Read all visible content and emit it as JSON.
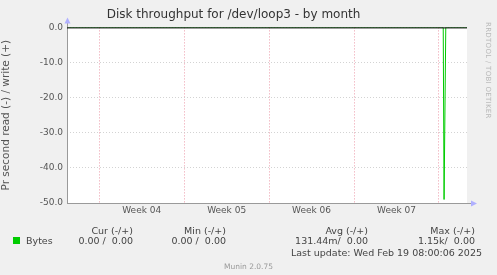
{
  "chart_data": {
    "type": "line",
    "title": "Disk throughput for /dev/loop3 - by month",
    "y_label": "Pr second read (-) / write (+)",
    "x": [
      3.62,
      8.05,
      8.06,
      8.07,
      8.08,
      8.33
    ],
    "series": [
      {
        "name": "Bytes",
        "color": "#00cc00",
        "values": [
          0,
          0,
          -49,
          -49,
          0,
          0
        ]
      }
    ],
    "xlim": [
      3.62,
      8.33
    ],
    "xticks": [
      {
        "value": 4.5,
        "label": "Week 04"
      },
      {
        "value": 5.5,
        "label": "Week 05"
      },
      {
        "value": 6.5,
        "label": "Week 06"
      },
      {
        "value": 7.5,
        "label": "Week 07"
      }
    ],
    "ylim": [
      -50,
      0
    ],
    "yticks": [
      {
        "value": 0,
        "label": "0.0"
      },
      {
        "value": -10,
        "label": "-10.0"
      },
      {
        "value": -20,
        "label": "-20.0"
      },
      {
        "value": -30,
        "label": "-30.0"
      },
      {
        "value": -40,
        "label": "-40.0"
      },
      {
        "value": -50,
        "label": "-50.0"
      }
    ],
    "grid": true,
    "stats": {
      "headers": [
        "Cur (-/+)",
        "Min (-/+)",
        "Avg (-/+)",
        "Max (-/+)"
      ],
      "values": [
        [
          "0.00 /  0.00",
          "0.00 /  0.00",
          "131.44m/  0.00",
          "1.15k/  0.00"
        ]
      ]
    },
    "footer": "Last update: Wed Feb 19 08:00:06 2025",
    "credit": "Munin 2.0.75",
    "watermark": "RRDTOOL / TOBI OETIKER"
  }
}
